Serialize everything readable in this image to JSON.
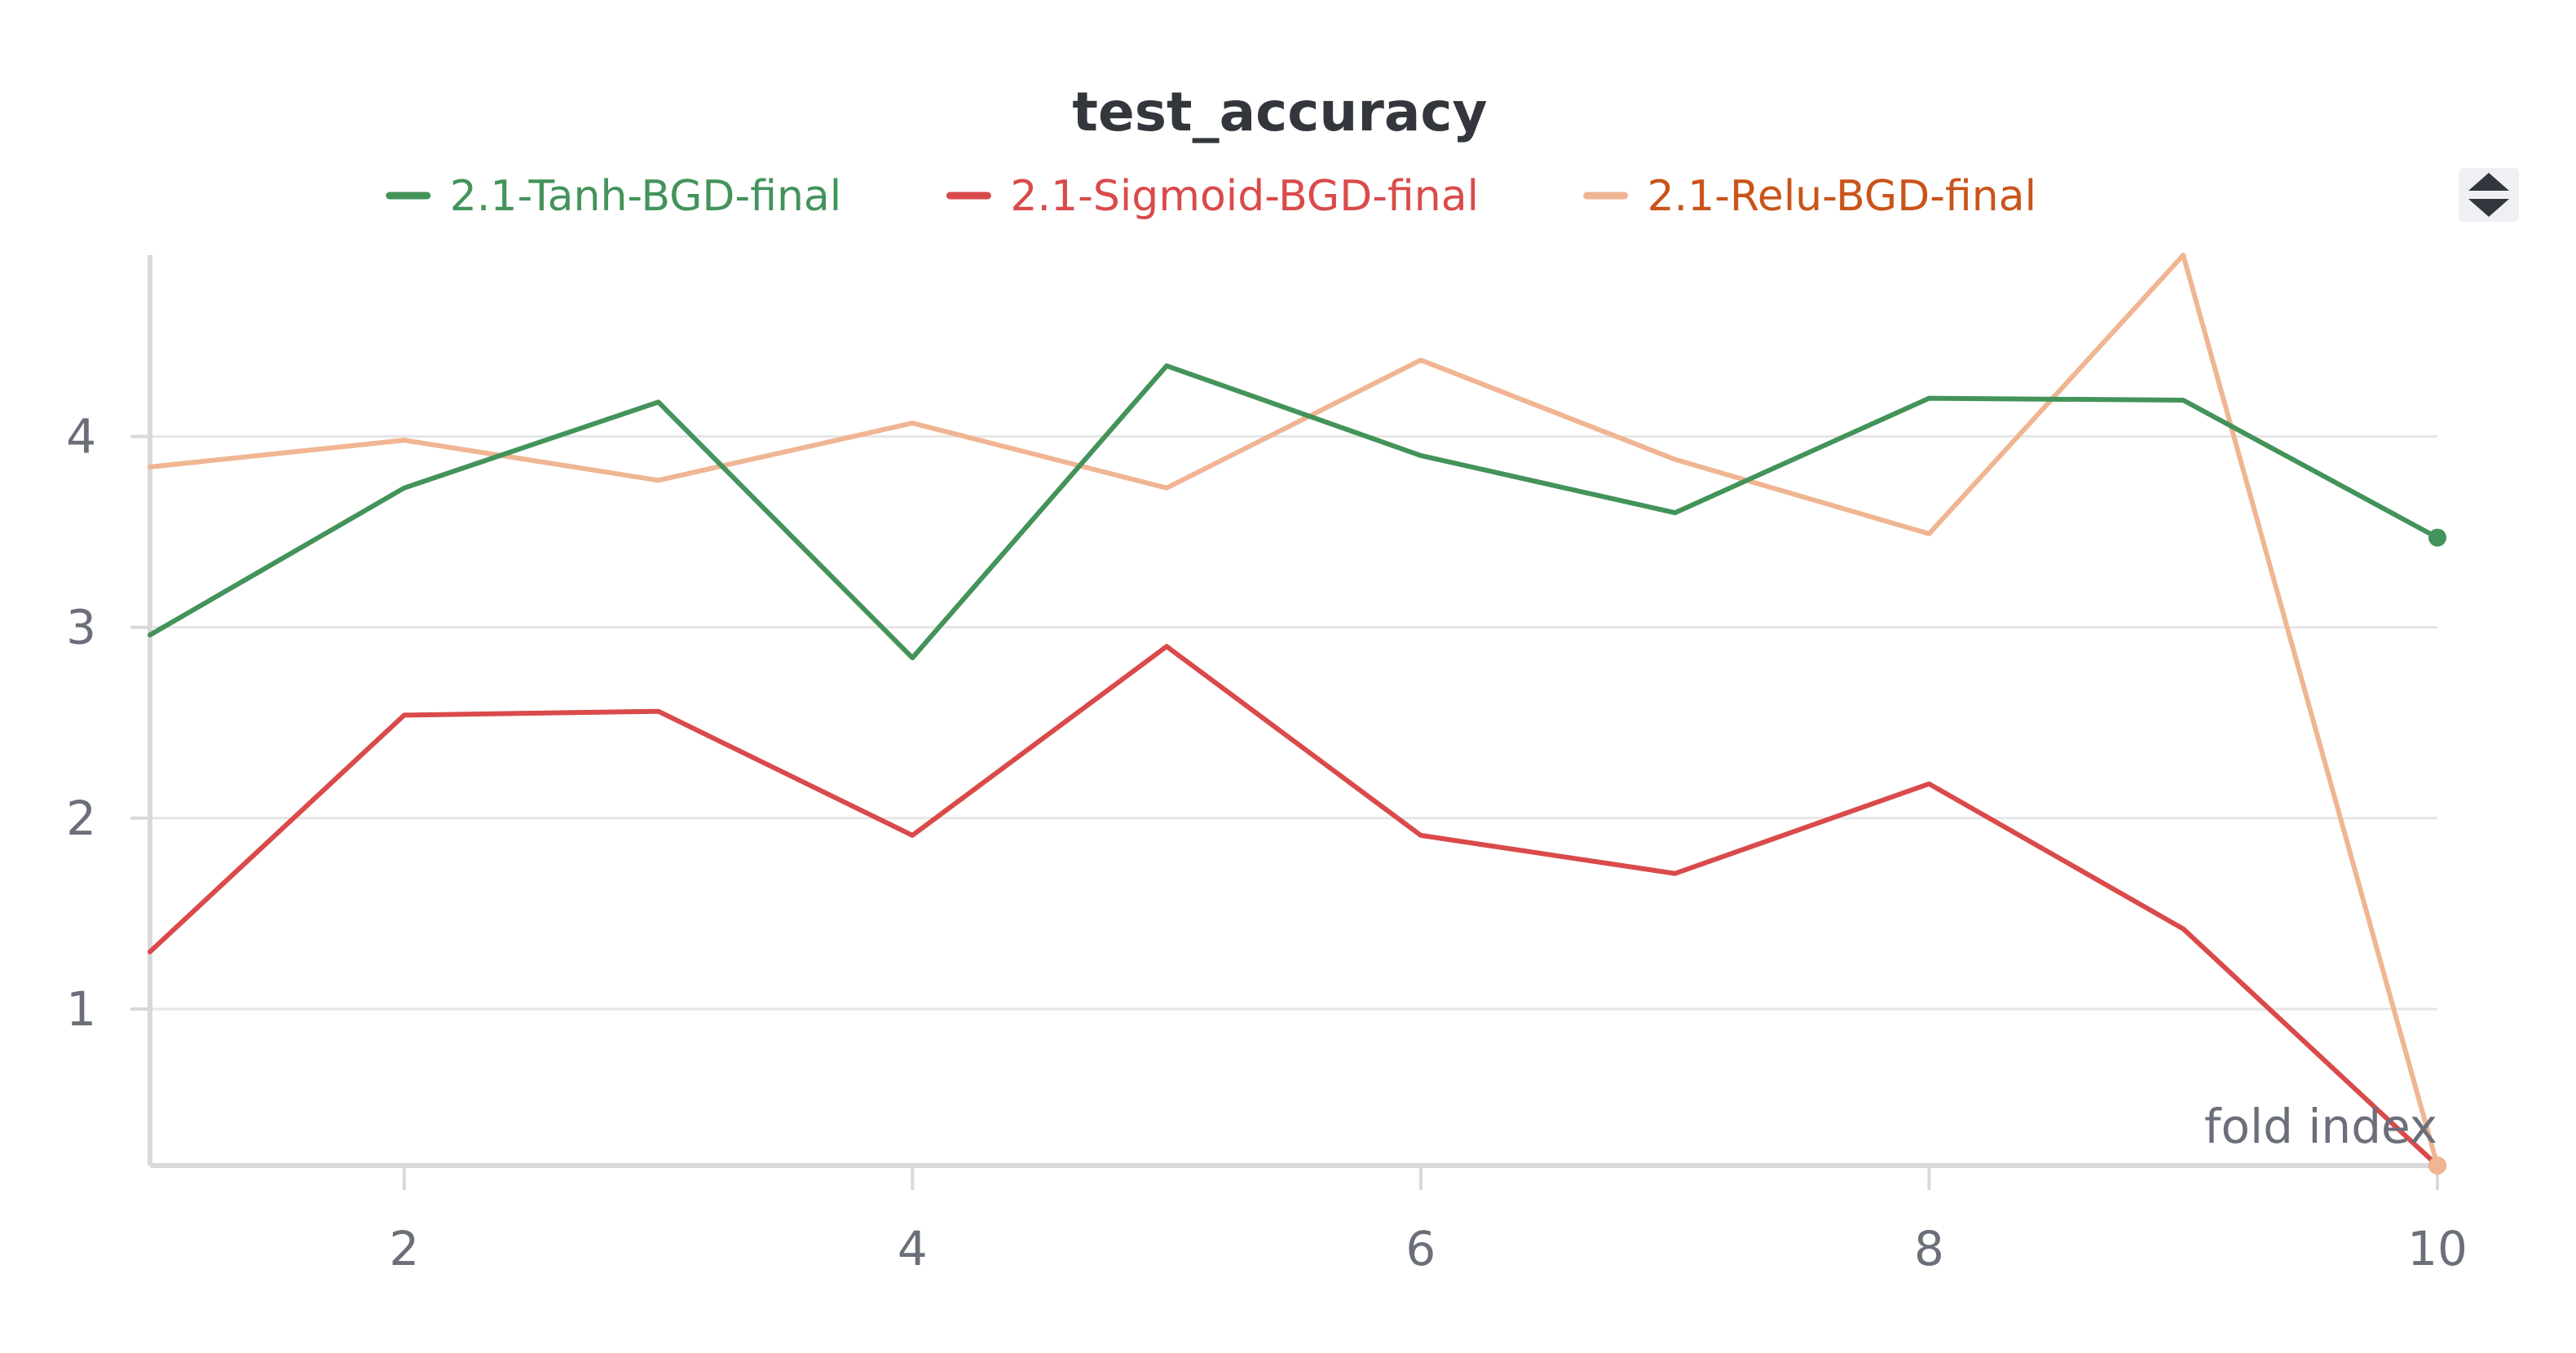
{
  "chart_data": {
    "type": "line",
    "title": "test_accuracy",
    "xlabel": "fold index",
    "ylabel": "",
    "xlim": [
      1,
      10
    ],
    "ylim": [
      0.18,
      4.95
    ],
    "x": [
      1,
      2,
      3,
      4,
      5,
      6,
      7,
      8,
      9,
      10
    ],
    "xticks": [
      2,
      4,
      6,
      8,
      10
    ],
    "yticks": [
      1,
      2,
      3,
      4
    ],
    "grid": "horizontal",
    "legend_placement": "top-center",
    "series": [
      {
        "name": "2.1-Tanh-BGD-final",
        "color": "#43935a",
        "label_color": "#43935a",
        "values": [
          2.96,
          3.73,
          4.18,
          2.84,
          4.37,
          3.9,
          3.6,
          4.2,
          4.19,
          3.47
        ]
      },
      {
        "name": "2.1-Sigmoid-BGD-final",
        "color": "#da4a4a",
        "label_color": "#da4a4a",
        "values": [
          1.3,
          2.54,
          2.56,
          1.91,
          2.9,
          1.91,
          1.71,
          2.18,
          1.42,
          0.18
        ]
      },
      {
        "name": "2.1-Relu-BGD-final",
        "color": "#f0b592",
        "label_color": "#c9541a",
        "values": [
          3.84,
          3.98,
          3.77,
          4.07,
          3.73,
          4.4,
          3.88,
          3.49,
          4.95,
          0.18
        ]
      }
    ]
  },
  "toolbar": {
    "icon": "sort-arrows-icon"
  },
  "colors": {
    "grid": "#e6e6e6",
    "axis": "#d9d9d9",
    "tick_text": "#6b6f7a",
    "title": "#33363d"
  }
}
